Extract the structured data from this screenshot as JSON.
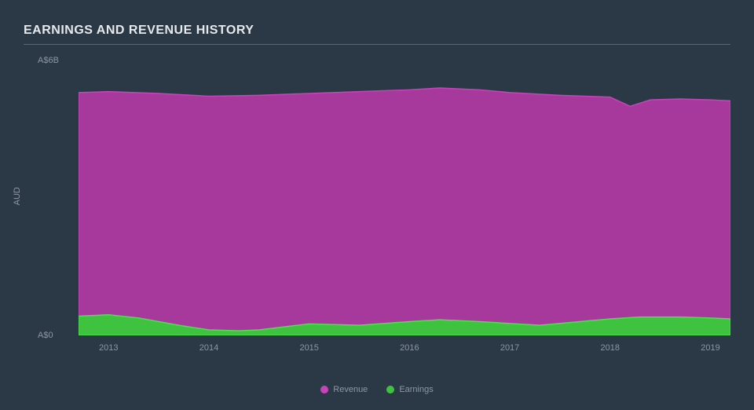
{
  "chart": {
    "type": "area",
    "title": "EARNINGS AND REVENUE HISTORY",
    "background_color": "#2b3947",
    "title_color": "#e6e9ec",
    "title_fontsize": 16,
    "title_underline_color": "#5a6876",
    "axis_label_color": "#8b97a3",
    "tick_label_color": "#8b97a3",
    "y_axis_label": "AUD",
    "y_ticks": [
      {
        "value": 0,
        "label": "A$0"
      },
      {
        "value": 6,
        "label": "A$6B"
      }
    ],
    "ylim": [
      0,
      6
    ],
    "x_ticks": [
      "2013",
      "2014",
      "2015",
      "2016",
      "2017",
      "2018",
      "2019"
    ],
    "xlim": [
      2012.7,
      2019.2
    ],
    "series": [
      {
        "name": "Revenue",
        "color": "#a6399b",
        "stroke": "#c843bb",
        "points": [
          {
            "x": 2012.7,
            "y": 5.3
          },
          {
            "x": 2013.0,
            "y": 5.32
          },
          {
            "x": 2013.5,
            "y": 5.28
          },
          {
            "x": 2014.0,
            "y": 5.22
          },
          {
            "x": 2014.5,
            "y": 5.24
          },
          {
            "x": 2015.0,
            "y": 5.28
          },
          {
            "x": 2015.5,
            "y": 5.32
          },
          {
            "x": 2016.0,
            "y": 5.36
          },
          {
            "x": 2016.3,
            "y": 5.4
          },
          {
            "x": 2016.7,
            "y": 5.36
          },
          {
            "x": 2017.0,
            "y": 5.3
          },
          {
            "x": 2017.5,
            "y": 5.24
          },
          {
            "x": 2018.0,
            "y": 5.2
          },
          {
            "x": 2018.2,
            "y": 5.0
          },
          {
            "x": 2018.4,
            "y": 5.14
          },
          {
            "x": 2018.7,
            "y": 5.16
          },
          {
            "x": 2019.0,
            "y": 5.14
          },
          {
            "x": 2019.2,
            "y": 5.12
          }
        ]
      },
      {
        "name": "Earnings",
        "color": "#3fc23f",
        "stroke": "#4de04d",
        "points": [
          {
            "x": 2012.7,
            "y": 0.42
          },
          {
            "x": 2013.0,
            "y": 0.45
          },
          {
            "x": 2013.3,
            "y": 0.38
          },
          {
            "x": 2013.7,
            "y": 0.22
          },
          {
            "x": 2014.0,
            "y": 0.12
          },
          {
            "x": 2014.3,
            "y": 0.1
          },
          {
            "x": 2014.5,
            "y": 0.12
          },
          {
            "x": 2014.8,
            "y": 0.2
          },
          {
            "x": 2015.0,
            "y": 0.25
          },
          {
            "x": 2015.5,
            "y": 0.22
          },
          {
            "x": 2016.0,
            "y": 0.3
          },
          {
            "x": 2016.3,
            "y": 0.34
          },
          {
            "x": 2016.7,
            "y": 0.3
          },
          {
            "x": 2017.0,
            "y": 0.26
          },
          {
            "x": 2017.3,
            "y": 0.22
          },
          {
            "x": 2017.6,
            "y": 0.28
          },
          {
            "x": 2018.0,
            "y": 0.36
          },
          {
            "x": 2018.3,
            "y": 0.4
          },
          {
            "x": 2018.7,
            "y": 0.4
          },
          {
            "x": 2019.0,
            "y": 0.38
          },
          {
            "x": 2019.2,
            "y": 0.36
          }
        ]
      }
    ],
    "legend": {
      "items": [
        {
          "label": "Revenue",
          "color": "#c843bb"
        },
        {
          "label": "Earnings",
          "color": "#3fc23f"
        }
      ],
      "text_color": "#8b97a3"
    }
  }
}
